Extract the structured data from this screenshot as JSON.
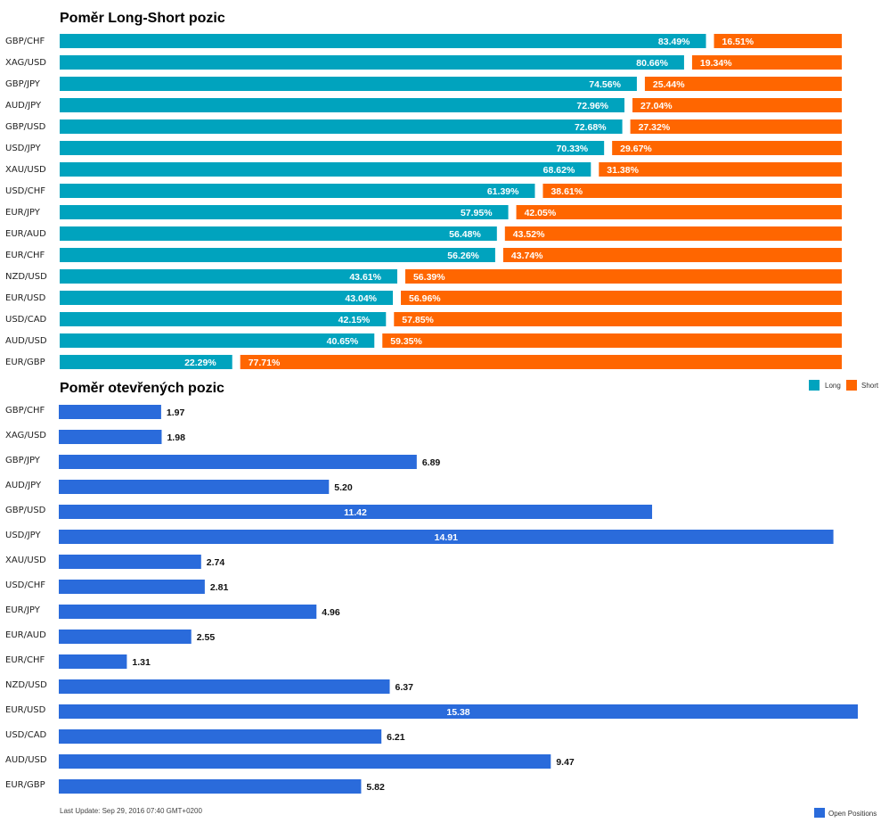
{
  "chart_data": [
    {
      "type": "bar",
      "stacked": true,
      "orientation": "horizontal",
      "title": "Poměr Long-Short pozic",
      "categories": [
        "GBP/CHF",
        "XAG/USD",
        "GBP/JPY",
        "AUD/JPY",
        "GBP/USD",
        "USD/JPY",
        "XAU/USD",
        "USD/CHF",
        "EUR/JPY",
        "EUR/AUD",
        "EUR/CHF",
        "NZD/USD",
        "EUR/USD",
        "USD/CAD",
        "AUD/USD",
        "EUR/GBP"
      ],
      "series": [
        {
          "name": "Long",
          "color": "#00A3BE",
          "values": [
            83.49,
            80.66,
            74.56,
            72.96,
            72.68,
            70.33,
            68.62,
            61.39,
            57.95,
            56.48,
            56.26,
            43.61,
            43.04,
            42.15,
            40.65,
            22.29
          ],
          "labels": [
            "83.49%",
            "80.66%",
            "74.56%",
            "72.96%",
            "72.68%",
            "70.33%",
            "68.62%",
            "61.39%",
            "57.95%",
            "56.48%",
            "56.26%",
            "43.61%",
            "43.04%",
            "42.15%",
            "40.65%",
            "22.29%"
          ]
        },
        {
          "name": "Short",
          "color": "#FF6600",
          "values": [
            16.51,
            19.34,
            25.44,
            27.04,
            27.32,
            29.67,
            31.38,
            38.61,
            42.05,
            43.52,
            43.74,
            56.39,
            56.96,
            57.85,
            59.35,
            77.71
          ],
          "labels": [
            "16.51%",
            "19.34%",
            "25.44%",
            "27.04%",
            "27.32%",
            "29.67%",
            "31.38%",
            "38.61%",
            "42.05%",
            "43.52%",
            "43.74%",
            "56.39%",
            "56.96%",
            "57.85%",
            "59.35%",
            "77.71%"
          ]
        }
      ],
      "legend": "right",
      "xlim": [
        0,
        100
      ]
    },
    {
      "type": "bar",
      "orientation": "horizontal",
      "title": "Poměr otevřených pozic",
      "categories": [
        "GBP/CHF",
        "XAG/USD",
        "GBP/JPY",
        "AUD/JPY",
        "GBP/USD",
        "USD/JPY",
        "XAU/USD",
        "USD/CHF",
        "EUR/JPY",
        "EUR/AUD",
        "EUR/CHF",
        "NZD/USD",
        "EUR/USD",
        "USD/CAD",
        "AUD/USD",
        "EUR/GBP"
      ],
      "series": [
        {
          "name": "Open Positions",
          "color": "#2A6BDB",
          "values": [
            1.97,
            1.98,
            6.89,
            5.2,
            11.42,
            14.91,
            2.74,
            2.81,
            4.96,
            2.55,
            1.31,
            6.37,
            15.38,
            6.21,
            9.47,
            5.82
          ],
          "labels": [
            "1.97",
            "1.98",
            "6.89",
            "5.20",
            "11.42",
            "14.91",
            "2.74",
            "2.81",
            "4.96",
            "2.55",
            "1.31",
            "6.37",
            "15.38",
            "6.21",
            "9.47",
            "5.82"
          ]
        }
      ],
      "legend": "bottom-right",
      "xlim": [
        0,
        15.38
      ]
    }
  ],
  "footer": {
    "last_update": "Last Update: Sep 29, 2016 07:40 GMT+0200"
  }
}
